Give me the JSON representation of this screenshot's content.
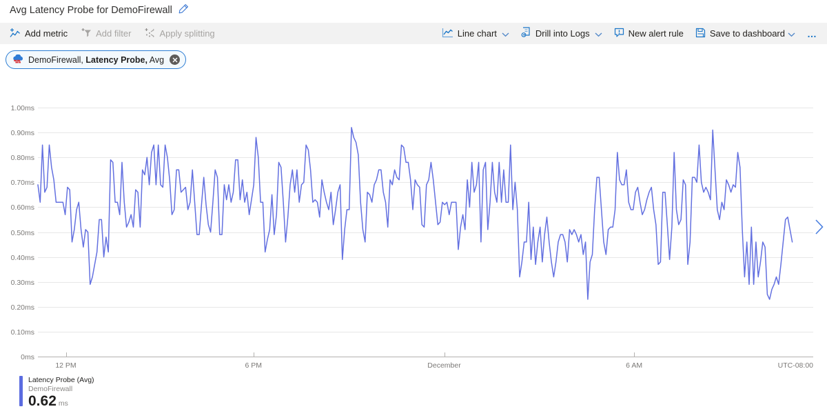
{
  "page": {
    "title": "Avg Latency Probe for DemoFirewall"
  },
  "toolbar": {
    "left": [
      {
        "label": "Add metric",
        "icon": "add-metric-icon",
        "enabled": true
      },
      {
        "label": "Add filter",
        "icon": "add-filter-icon",
        "enabled": false
      },
      {
        "label": "Apply splitting",
        "icon": "apply-splitting-icon",
        "enabled": false
      }
    ],
    "right": [
      {
        "label": "Line chart",
        "icon": "line-chart-icon",
        "chevron": true
      },
      {
        "label": "Drill into Logs",
        "icon": "drill-into-logs-icon",
        "chevron": true
      },
      {
        "label": "New alert rule",
        "icon": "new-alert-rule-icon",
        "chevron": false
      },
      {
        "label": "Save to dashboard",
        "icon": "save-to-dashboard-icon",
        "chevron": true
      }
    ],
    "more_label": "…"
  },
  "metric_chip": {
    "icon": "firewall-icon",
    "resource": "DemoFirewall,",
    "metric": "Latency Probe,",
    "aggregation": "Avg"
  },
  "legend": {
    "name": "Latency Probe (Avg)",
    "resource": "DemoFirewall",
    "value": "0.62",
    "unit": "ms"
  },
  "colors": {
    "accent": "#1b76c8",
    "line": "#6370e0",
    "legend_bar": "#5b6ce0",
    "grid": "#e7e7e7",
    "axis": "#b3b1af",
    "tick_text": "#7a7876",
    "disabled": "#a6a4a2",
    "chip_border": "#2b7cd3",
    "chip_bg": "#f3f9fd"
  },
  "chart_data": {
    "type": "line",
    "title": "Avg Latency Probe for DemoFirewall",
    "xlabel": "",
    "ylabel": "",
    "unit": "ms",
    "ylim": [
      0,
      1
    ],
    "grid": true,
    "legend_position": "bottom-left",
    "timezone": "UTC-08:00",
    "y_ticks": [
      {
        "value": 1.0,
        "label": "1.00ms"
      },
      {
        "value": 0.9,
        "label": "0.90ms"
      },
      {
        "value": 0.8,
        "label": "0.80ms"
      },
      {
        "value": 0.7,
        "label": "0.70ms"
      },
      {
        "value": 0.6,
        "label": "0.60ms"
      },
      {
        "value": 0.5,
        "label": "0.50ms"
      },
      {
        "value": 0.4,
        "label": "0.40ms"
      },
      {
        "value": 0.3,
        "label": "0.30ms"
      },
      {
        "value": 0.2,
        "label": "0.20ms"
      },
      {
        "value": 0.1,
        "label": "0.10ms"
      },
      {
        "value": 0.0,
        "label": "0ms"
      }
    ],
    "x_ticks": [
      {
        "label": "12 PM",
        "pos": 0.036,
        "tick": true,
        "align": "middle"
      },
      {
        "label": "6 PM",
        "pos": 0.278,
        "tick": true,
        "align": "middle"
      },
      {
        "label": "December",
        "pos": 0.524,
        "tick": true,
        "align": "middle"
      },
      {
        "label": "6 AM",
        "pos": 0.769,
        "tick": true,
        "align": "middle"
      },
      {
        "label": "UTC-08:00",
        "pos": 1.0,
        "tick": false,
        "align": "end"
      }
    ],
    "series": [
      {
        "name": "Latency Probe (Avg)",
        "resource": "DemoFirewall",
        "color": "#6370e0",
        "extent": 0.973,
        "values": [
          0.69,
          0.62,
          0.85,
          0.66,
          0.68,
          0.85,
          0.76,
          0.71,
          0.62,
          0.62,
          0.62,
          0.62,
          0.57,
          0.68,
          0.67,
          0.46,
          0.51,
          0.59,
          0.62,
          0.51,
          0.44,
          0.51,
          0.5,
          0.29,
          0.32,
          0.37,
          0.42,
          0.55,
          0.55,
          0.4,
          0.48,
          0.42,
          0.79,
          0.78,
          0.62,
          0.62,
          0.57,
          0.78,
          0.62,
          0.52,
          0.54,
          0.57,
          0.52,
          0.67,
          0.66,
          0.52,
          0.75,
          0.73,
          0.8,
          0.69,
          0.82,
          0.85,
          0.69,
          0.85,
          0.69,
          0.68,
          0.85,
          0.8,
          0.71,
          0.57,
          0.59,
          0.75,
          0.75,
          0.66,
          0.67,
          0.68,
          0.59,
          0.62,
          0.75,
          0.62,
          0.49,
          0.49,
          0.61,
          0.72,
          0.61,
          0.53,
          0.5,
          0.62,
          0.75,
          0.72,
          0.49,
          0.49,
          0.69,
          0.63,
          0.69,
          0.62,
          0.66,
          0.79,
          0.79,
          0.63,
          0.71,
          0.62,
          0.66,
          0.57,
          0.63,
          0.69,
          0.88,
          0.8,
          0.62,
          0.62,
          0.42,
          0.47,
          0.51,
          0.65,
          0.49,
          0.57,
          0.78,
          0.76,
          0.62,
          0.46,
          0.56,
          0.69,
          0.75,
          0.66,
          0.75,
          0.62,
          0.69,
          0.7,
          0.85,
          0.83,
          0.75,
          0.62,
          0.63,
          0.62,
          0.56,
          0.71,
          0.66,
          0.62,
          0.59,
          0.66,
          0.53,
          0.59,
          0.66,
          0.69,
          0.39,
          0.51,
          0.59,
          0.59,
          0.92,
          0.88,
          0.86,
          0.81,
          0.62,
          0.51,
          0.46,
          0.66,
          0.65,
          0.62,
          0.69,
          0.71,
          0.75,
          0.75,
          0.66,
          0.62,
          0.52,
          0.71,
          0.69,
          0.75,
          0.72,
          0.71,
          0.85,
          0.84,
          0.78,
          0.78,
          0.71,
          0.59,
          0.71,
          0.69,
          0.68,
          0.53,
          0.52,
          0.69,
          0.71,
          0.78,
          0.71,
          0.62,
          0.53,
          0.54,
          0.62,
          0.61,
          0.62,
          0.57,
          0.62,
          0.62,
          0.62,
          0.43,
          0.52,
          0.57,
          0.51,
          0.71,
          0.6,
          0.78,
          0.66,
          0.69,
          0.78,
          0.46,
          0.75,
          0.78,
          0.51,
          0.62,
          0.78,
          0.66,
          0.62,
          0.78,
          0.62,
          0.75,
          0.62,
          0.62,
          0.85,
          0.59,
          0.7,
          0.59,
          0.32,
          0.38,
          0.46,
          0.46,
          0.62,
          0.39,
          0.52,
          0.37,
          0.46,
          0.52,
          0.38,
          0.49,
          0.56,
          0.46,
          0.38,
          0.32,
          0.38,
          0.46,
          0.49,
          0.49,
          0.46,
          0.38,
          0.51,
          0.49,
          0.51,
          0.49,
          0.46,
          0.49,
          0.41,
          0.46,
          0.23,
          0.38,
          0.41,
          0.59,
          0.72,
          0.72,
          0.59,
          0.46,
          0.41,
          0.51,
          0.52,
          0.52,
          0.59,
          0.82,
          0.71,
          0.69,
          0.69,
          0.75,
          0.62,
          0.59,
          0.59,
          0.66,
          0.68,
          0.62,
          0.57,
          0.59,
          0.63,
          0.66,
          0.68,
          0.59,
          0.53,
          0.37,
          0.38,
          0.66,
          0.66,
          0.53,
          0.39,
          0.52,
          0.82,
          0.59,
          0.53,
          0.55,
          0.71,
          0.69,
          0.37,
          0.46,
          0.72,
          0.72,
          0.7,
          0.85,
          0.7,
          0.66,
          0.68,
          0.66,
          0.63,
          0.91,
          0.75,
          0.59,
          0.55,
          0.62,
          0.59,
          0.71,
          0.69,
          0.66,
          0.69,
          0.68,
          0.82,
          0.76,
          0.51,
          0.32,
          0.46,
          0.29,
          0.52,
          0.29,
          0.46,
          0.32,
          0.38,
          0.46,
          0.44,
          0.25,
          0.23,
          0.27,
          0.29,
          0.32,
          0.29,
          0.37,
          0.46,
          0.55,
          0.56,
          0.51,
          0.46
        ]
      }
    ]
  }
}
